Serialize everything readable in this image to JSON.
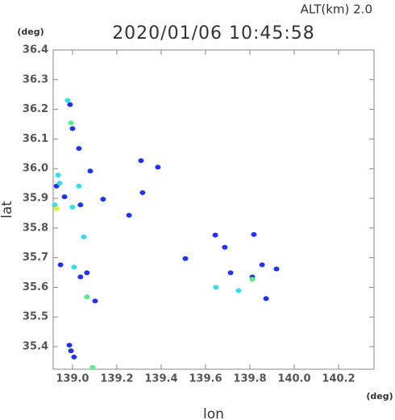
{
  "chart_data": {
    "type": "scatter",
    "title": "2020/01/06 10:45:58",
    "subtitle": "ALT(km)  2.0",
    "x_label": "lon",
    "y_label": "lat",
    "x_unit": "(deg)",
    "y_unit": "(deg)",
    "xlim": [
      138.913,
      140.36
    ],
    "ylim": [
      35.324,
      36.4
    ],
    "xticks": [
      {
        "value": 139,
        "label": "139.0"
      },
      139.2,
      139.4,
      139.6,
      139.8,
      {
        "value": 140,
        "label": "140.0"
      },
      140.2
    ],
    "yticks": [
      35.4,
      35.5,
      35.6,
      35.7,
      35.8,
      35.9,
      {
        "value": 36,
        "label": "36.0"
      },
      36.1,
      36.2,
      36.3,
      36.4
    ],
    "series": [
      {
        "color": "#2233ee",
        "x": [
          138.989,
          139.0,
          139.029,
          138.928,
          138.964,
          139.036,
          139.08,
          138.946,
          139.036,
          139.065,
          139.102,
          138.986,
          138.993,
          139.007,
          139.309,
          139.385,
          139.316,
          139.138,
          139.255,
          139.509,
          139.644,
          139.713,
          139.811,
          139.873,
          139.92,
          139.855,
          139.818,
          139.687
        ],
        "y": [
          36.216,
          36.135,
          36.068,
          35.941,
          35.905,
          35.878,
          35.992,
          35.676,
          35.635,
          35.649,
          35.554,
          35.405,
          35.386,
          35.365,
          36.027,
          36.005,
          35.919,
          35.897,
          35.843,
          35.697,
          35.776,
          35.649,
          35.635,
          35.562,
          35.662,
          35.676,
          35.778,
          35.735
        ]
      },
      {
        "color": "#33ddee",
        "x": [
          138.978,
          138.935,
          138.942,
          138.92,
          139.0,
          139.029,
          139.051,
          139.007,
          139.749,
          139.647
        ],
        "y": [
          36.23,
          35.978,
          35.951,
          35.878,
          35.87,
          35.941,
          35.77,
          35.668,
          35.589,
          35.6
        ]
      },
      {
        "color": "#55ee88",
        "x": [
          138.993,
          139.065,
          139.091,
          139.811
        ],
        "y": [
          36.154,
          35.568,
          35.33,
          35.627
        ]
      },
      {
        "color": "#ddee33",
        "x": [
          138.928
        ],
        "y": [
          35.865
        ]
      }
    ]
  }
}
